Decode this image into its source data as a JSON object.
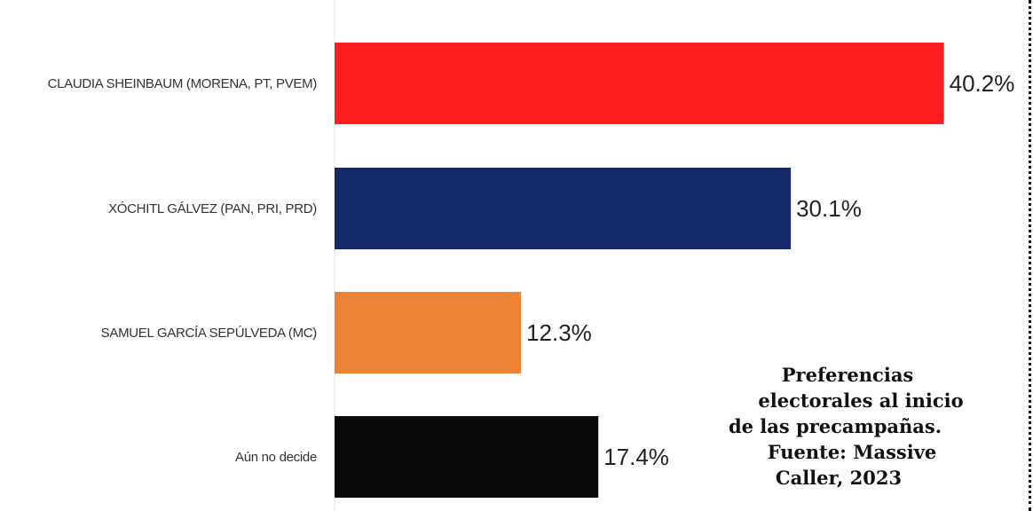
{
  "chart_data": {
    "type": "bar",
    "orientation": "horizontal",
    "categories": [
      "CLAUDIA SHEINBAUM (MORENA, PT, PVEM)",
      "XÓCHITL GÁLVEZ (PAN, PRI, PRD)",
      "SAMUEL GARCÍA SEPÚLVEDA (MC)",
      "Aún no decide"
    ],
    "values": [
      40.2,
      30.1,
      12.3,
      17.4
    ],
    "value_labels": [
      "40.2%",
      "30.1%",
      "12.3%",
      "17.4%"
    ],
    "colors": [
      "#ff1f1f",
      "#142a6a",
      "#ec8235",
      "#0b0909"
    ],
    "xlim": [
      0,
      42
    ],
    "grid": false,
    "legend": "none"
  },
  "caption": {
    "lines": [
      "Preferencias",
      "electorales al inicio",
      "de las precampañas.",
      "Fuente: Massive",
      "Caller, 2023"
    ]
  }
}
